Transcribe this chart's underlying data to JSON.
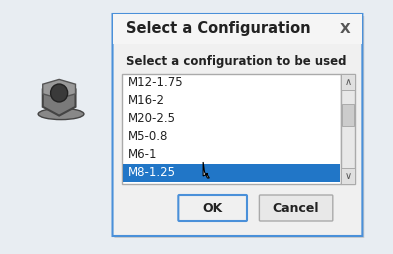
{
  "title": "Select a Configuration",
  "close_symbol": "X",
  "subtitle": "Select a configuration to be used",
  "list_items": [
    "M12-1.75",
    "M16-2",
    "M20-2.5",
    "M5-0.8",
    "M6-1",
    "M8-1.25"
  ],
  "selected_item": "M8-1.25",
  "selected_index": 5,
  "ok_label": "OK",
  "cancel_label": "Cancel",
  "dialog_bg": "#f0f0f0",
  "dialog_border": "#4a90d9",
  "list_bg": "#ffffff",
  "list_border": "#aaaaaa",
  "selected_bg": "#2176c7",
  "selected_fg": "#ffffff",
  "normal_fg": "#222222",
  "button_bg": "#f0f0f0",
  "button_border": "#4a90d9",
  "scrollbar_bg": "#cccccc",
  "scrollbar_track": "#e8e8e8",
  "outer_bg": "#e8edf2"
}
